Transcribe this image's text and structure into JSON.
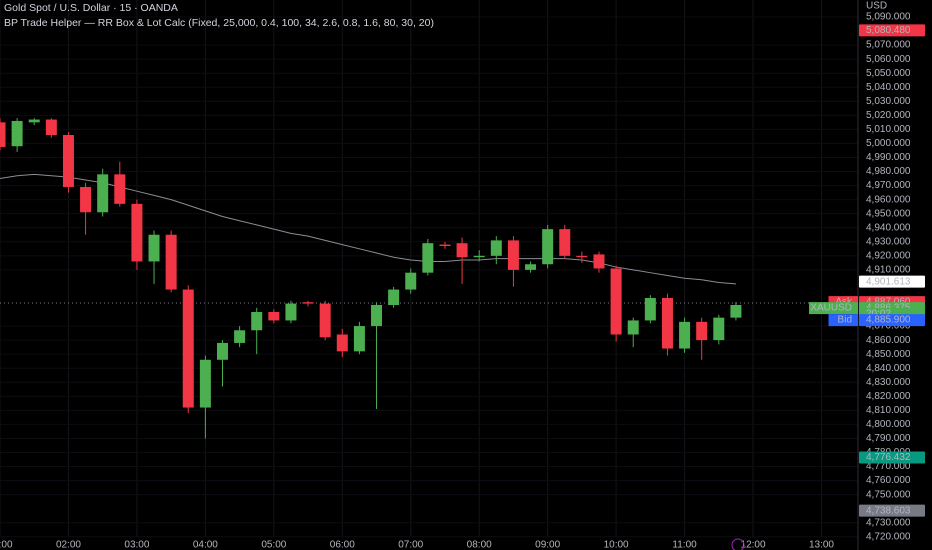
{
  "chart_data": {
    "type": "candlestick",
    "title": "Gold Spot / U.S. Dollar · 15 · OANDA",
    "subtitle": "BP Trade Helper — RR Box & Lot Calc (Fixed, 25,000, 0.4, 100, 34, 2.6, 0.8, 1.6, 80, 30, 20)",
    "currency": "USD",
    "x": [
      "01:00",
      "01:15",
      "01:30",
      "01:45",
      "02:00",
      "02:15",
      "02:30",
      "02:45",
      "03:00",
      "03:15",
      "03:30",
      "03:45",
      "04:00",
      "04:15",
      "04:30",
      "04:45",
      "05:00",
      "05:15",
      "05:30",
      "05:45",
      "06:00",
      "06:15",
      "06:30",
      "06:45",
      "07:00",
      "07:15",
      "07:30",
      "07:45",
      "08:00",
      "08:15",
      "08:30",
      "08:45",
      "09:00",
      "09:15",
      "09:30",
      "09:45",
      "10:00",
      "10:15",
      "10:30",
      "10:45",
      "11:00",
      "11:15",
      "11:30",
      "11:45"
    ],
    "open": [
      5015,
      4998,
      5015,
      5017,
      5006,
      4969,
      4951,
      4978,
      4957,
      4916,
      4935,
      4896,
      4812,
      4846,
      4858,
      4867,
      4880,
      4874,
      4887,
      4886,
      4864,
      4852,
      4870,
      4885,
      4896,
      4908,
      4928,
      4929,
      4919,
      4920,
      4931,
      4910,
      4914,
      4939,
      4920,
      4921,
      4911,
      4864,
      4874,
      4890,
      4854,
      4873,
      4860,
      4876
    ],
    "high": [
      5018,
      5018,
      5018,
      5018,
      5008,
      4972,
      4982,
      4987,
      4960,
      4938,
      4938,
      4899,
      4849,
      4860,
      4870,
      4883,
      4882,
      4888,
      4888,
      4888,
      4868,
      4873,
      4887,
      4898,
      4911,
      4932,
      4930,
      4933,
      4924,
      4934,
      4934,
      4916,
      4942,
      4942,
      4923,
      4923,
      4913,
      4876,
      4892,
      4893,
      4876,
      4876,
      4878,
      4887
    ],
    "low": [
      4995,
      4994,
      5013,
      5004,
      4965,
      4935,
      4948,
      4955,
      4910,
      4900,
      4894,
      4808,
      4790,
      4827,
      4855,
      4850,
      4872,
      4872,
      4884,
      4860,
      4848,
      4850,
      4811,
      4883,
      4893,
      4906,
      4925,
      4900,
      4916,
      4914,
      4898,
      4908,
      4911,
      4918,
      4915,
      4908,
      4859,
      4855,
      4872,
      4849,
      4851,
      4846,
      4857,
      4874
    ],
    "close": [
      4997.5,
      5016,
      5017,
      5006,
      4969,
      4951,
      4978,
      4957,
      4916,
      4935,
      4896,
      4812,
      4846,
      4858,
      4867,
      4880,
      4874,
      4886,
      4886,
      4862,
      4852,
      4870,
      4885,
      4896,
      4908,
      4929,
      4927,
      4919,
      4920,
      4931,
      4910,
      4914,
      4939,
      4920,
      4919,
      4911,
      4864,
      4874,
      4890,
      4854,
      4873,
      4860,
      4876,
      4885
    ],
    "ma": [
      4975,
      4977,
      4978,
      4977,
      4976,
      4974,
      4972,
      4969,
      4966,
      4963,
      4960,
      4956,
      4952,
      4948,
      4945,
      4942,
      4939,
      4936,
      4934,
      4931,
      4928,
      4925,
      4922,
      4919,
      4917,
      4916,
      4916,
      4917,
      4917,
      4918,
      4918,
      4918,
      4918,
      4918,
      4917,
      4915,
      4912,
      4910,
      4908,
      4906,
      4904,
      4903,
      4901,
      4900
    ],
    "up_color": "#4caf50",
    "down_color": "#f23645",
    "ma_color": "#8a8d96",
    "xlim": [
      "01:00",
      "13:32"
    ],
    "xticks": [
      "01:00",
      "02:00",
      "03:00",
      "04:00",
      "05:00",
      "06:00",
      "07:00",
      "08:00",
      "09:00",
      "10:00",
      "11:00",
      "12:00",
      "13:00"
    ],
    "ylim": [
      4710.6,
      5102.1
    ],
    "yticks": [
      {
        "value": 5090,
        "label": "5,090.000"
      },
      {
        "value": 5070,
        "label": "5,070.000"
      },
      {
        "value": 5060,
        "label": "5,060.000"
      },
      {
        "value": 5050,
        "label": "5,050.000"
      },
      {
        "value": 5040,
        "label": "5,040.000"
      },
      {
        "value": 5030,
        "label": "5,030.000"
      },
      {
        "value": 5020,
        "label": "5,020.000"
      },
      {
        "value": 5010,
        "label": "5,010.000"
      },
      {
        "value": 5000,
        "label": "5,000.000"
      },
      {
        "value": 4990,
        "label": "4,990.000"
      },
      {
        "value": 4980,
        "label": "4,980.000"
      },
      {
        "value": 4970,
        "label": "4,970.000"
      },
      {
        "value": 4960,
        "label": "4,960.000"
      },
      {
        "value": 4950,
        "label": "4,950.000"
      },
      {
        "value": 4940,
        "label": "4,940.000"
      },
      {
        "value": 4930,
        "label": "4,930.000"
      },
      {
        "value": 4920,
        "label": "4,920.000"
      },
      {
        "value": 4910,
        "label": "4,910.000"
      },
      {
        "value": 4870,
        "label": "4,870.000"
      },
      {
        "value": 4860,
        "label": "4,860.000"
      },
      {
        "value": 4850,
        "label": "4,850.000"
      },
      {
        "value": 4840,
        "label": "4,840.000"
      },
      {
        "value": 4830,
        "label": "4,830.000"
      },
      {
        "value": 4820,
        "label": "4,820.000"
      },
      {
        "value": 4810,
        "label": "4,810.000"
      },
      {
        "value": 4800,
        "label": "4,800.000"
      },
      {
        "value": 4790,
        "label": "4,790.000"
      },
      {
        "value": 4780,
        "label": "4,780.000"
      },
      {
        "value": 4770,
        "label": "4,770.000"
      },
      {
        "value": 4760,
        "label": "4,760.000"
      },
      {
        "value": 4750,
        "label": "4,750.000"
      },
      {
        "value": 4730,
        "label": "4,730.000"
      },
      {
        "value": 4720,
        "label": "4,720.000"
      }
    ],
    "current_price": 4886.375,
    "price_tags": [
      {
        "value": 5080.48,
        "label": "5,080.480",
        "color": "#f23645",
        "text_color": "#ffffff"
      },
      {
        "value": 4901.613,
        "label": "4,901.613",
        "color": "#ffffff",
        "text_color": "#000000"
      },
      {
        "name": "Ask",
        "value": 4887.06,
        "label": "4,887.060",
        "color": "#f23645",
        "text_color": "#ffffff"
      },
      {
        "name": "XAUUSD",
        "value": 4886.375,
        "label": "4,886.375",
        "color": "#4caf50",
        "text_color": "#ffffff"
      },
      {
        "value": 4886.375,
        "label": "20:02",
        "color": "#4caf50",
        "text_color": "#ffffff"
      },
      {
        "name": "Bid",
        "value": 4885.9,
        "label": "4,885.900",
        "color": "#2962ff",
        "text_color": "#ffffff"
      },
      {
        "value": 4776.432,
        "label": "4,776.432",
        "color": "#089981",
        "text_color": "#ffffff"
      },
      {
        "value": 4738.603,
        "label": "4,738.603",
        "color": "#787b86",
        "text_color": "#ffffff"
      }
    ]
  }
}
